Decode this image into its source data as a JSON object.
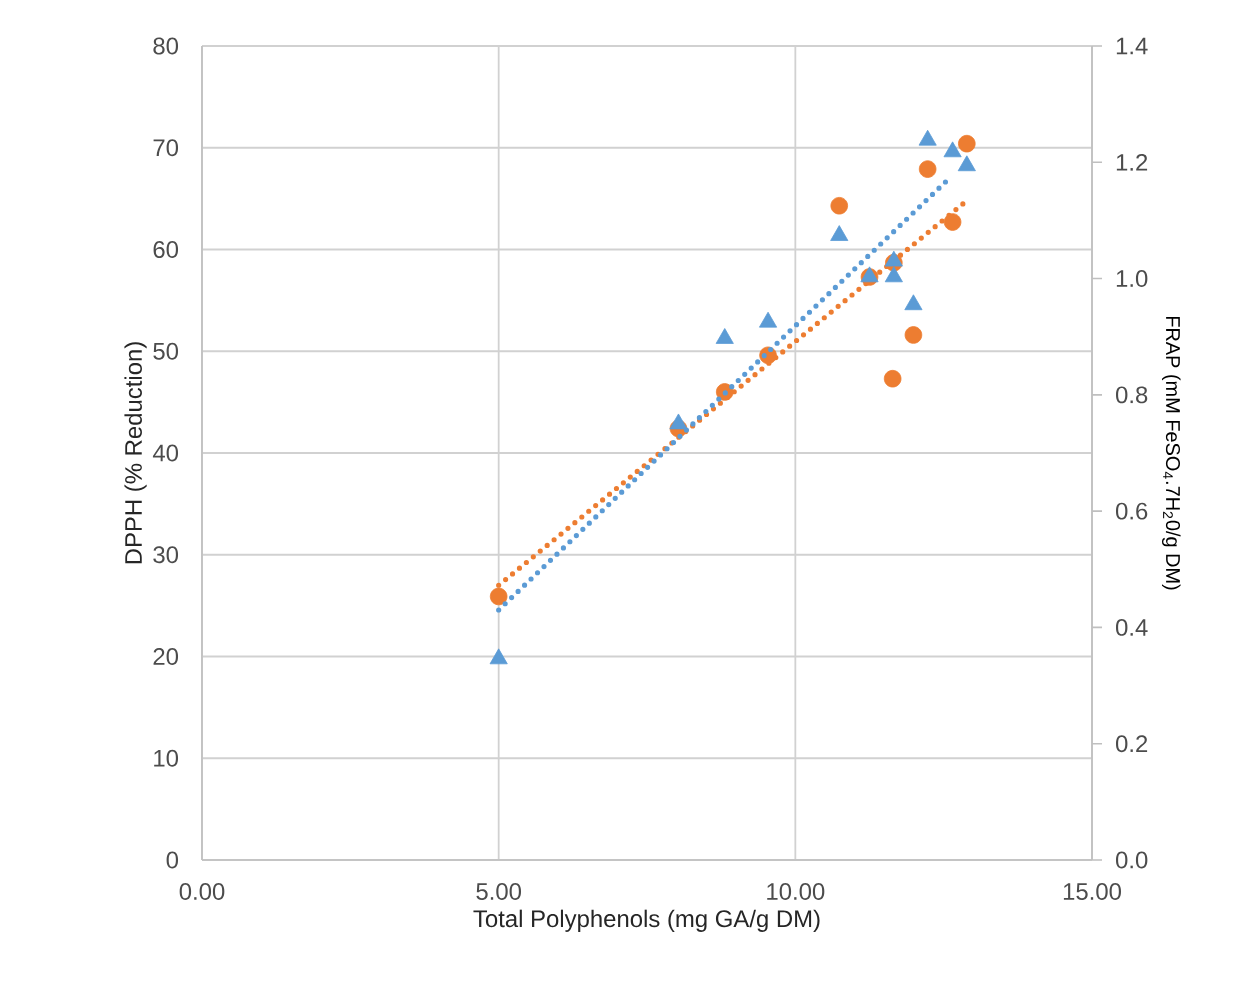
{
  "chart_data": {
    "type": "scatter",
    "xlabel": "Total Polyphenols (mg GA/g DM)",
    "ylabel": "DPPH (% Reduction)",
    "y2label": "FRAP (mM FeSO$_{4}$.7H$_{2}$0/g DM)",
    "xlim": [
      0,
      15
    ],
    "xticks": [
      {
        "value": 0,
        "label": "0.00"
      },
      {
        "value": 5,
        "label": "5.00"
      },
      {
        "value": 10,
        "label": "10.00"
      },
      {
        "value": 15,
        "label": "15.00"
      }
    ],
    "ylim": [
      0,
      80
    ],
    "yticks": [
      0,
      10,
      20,
      30,
      40,
      50,
      60,
      70,
      80
    ],
    "y2lim": [
      0,
      1.4
    ],
    "y2ticks": [
      {
        "value": 0,
        "label": "0.0"
      },
      {
        "value": 0.2,
        "label": "0.2"
      },
      {
        "value": 0.4,
        "label": "0.4"
      },
      {
        "value": 0.6,
        "label": "0.6"
      },
      {
        "value": 0.8,
        "label": "0.8"
      },
      {
        "value": 1.0,
        "label": "1.0"
      },
      {
        "value": 1.2,
        "label": "1.2"
      },
      {
        "value": 1.4,
        "label": "1.4"
      }
    ],
    "grid": true,
    "series": [
      {
        "color": "#ed7d31",
        "marker": "circle",
        "x": [
          5.0,
          8.03,
          8.81,
          9.54,
          10.74,
          11.25,
          11.66,
          11.64,
          11.99,
          12.23,
          12.65,
          12.89
        ],
        "values": [
          25.9,
          42.4,
          46.0,
          49.6,
          64.3,
          57.3,
          58.7,
          47.3,
          51.6,
          67.9,
          62.7,
          70.4
        ]
      },
      {
        "color": "#5b9bd5",
        "marker": "triangle",
        "axis": "y2",
        "x": [
          5.0,
          8.03,
          8.81,
          9.54,
          10.74,
          11.25,
          11.66,
          11.66,
          11.99,
          12.23,
          12.65,
          12.89
        ],
        "values": [
          0.346,
          0.75,
          0.897,
          0.925,
          1.074,
          1.003,
          1.03,
          1.003,
          0.955,
          1.238,
          1.218,
          1.194
        ]
      },
      {
        "type": "line",
        "color": "#ed7d31",
        "marker": "none",
        "line_style": "dotted",
        "x": [
          5.0,
          12.89
        ],
        "values": [
          27.0,
          64.8
        ]
      },
      {
        "type": "line",
        "color": "#5b9bd5",
        "marker": "none",
        "line_style": "dotted",
        "axis": "y2",
        "x": [
          5.0,
          12.57
        ],
        "values": [
          0.43,
          1.17
        ]
      }
    ]
  }
}
